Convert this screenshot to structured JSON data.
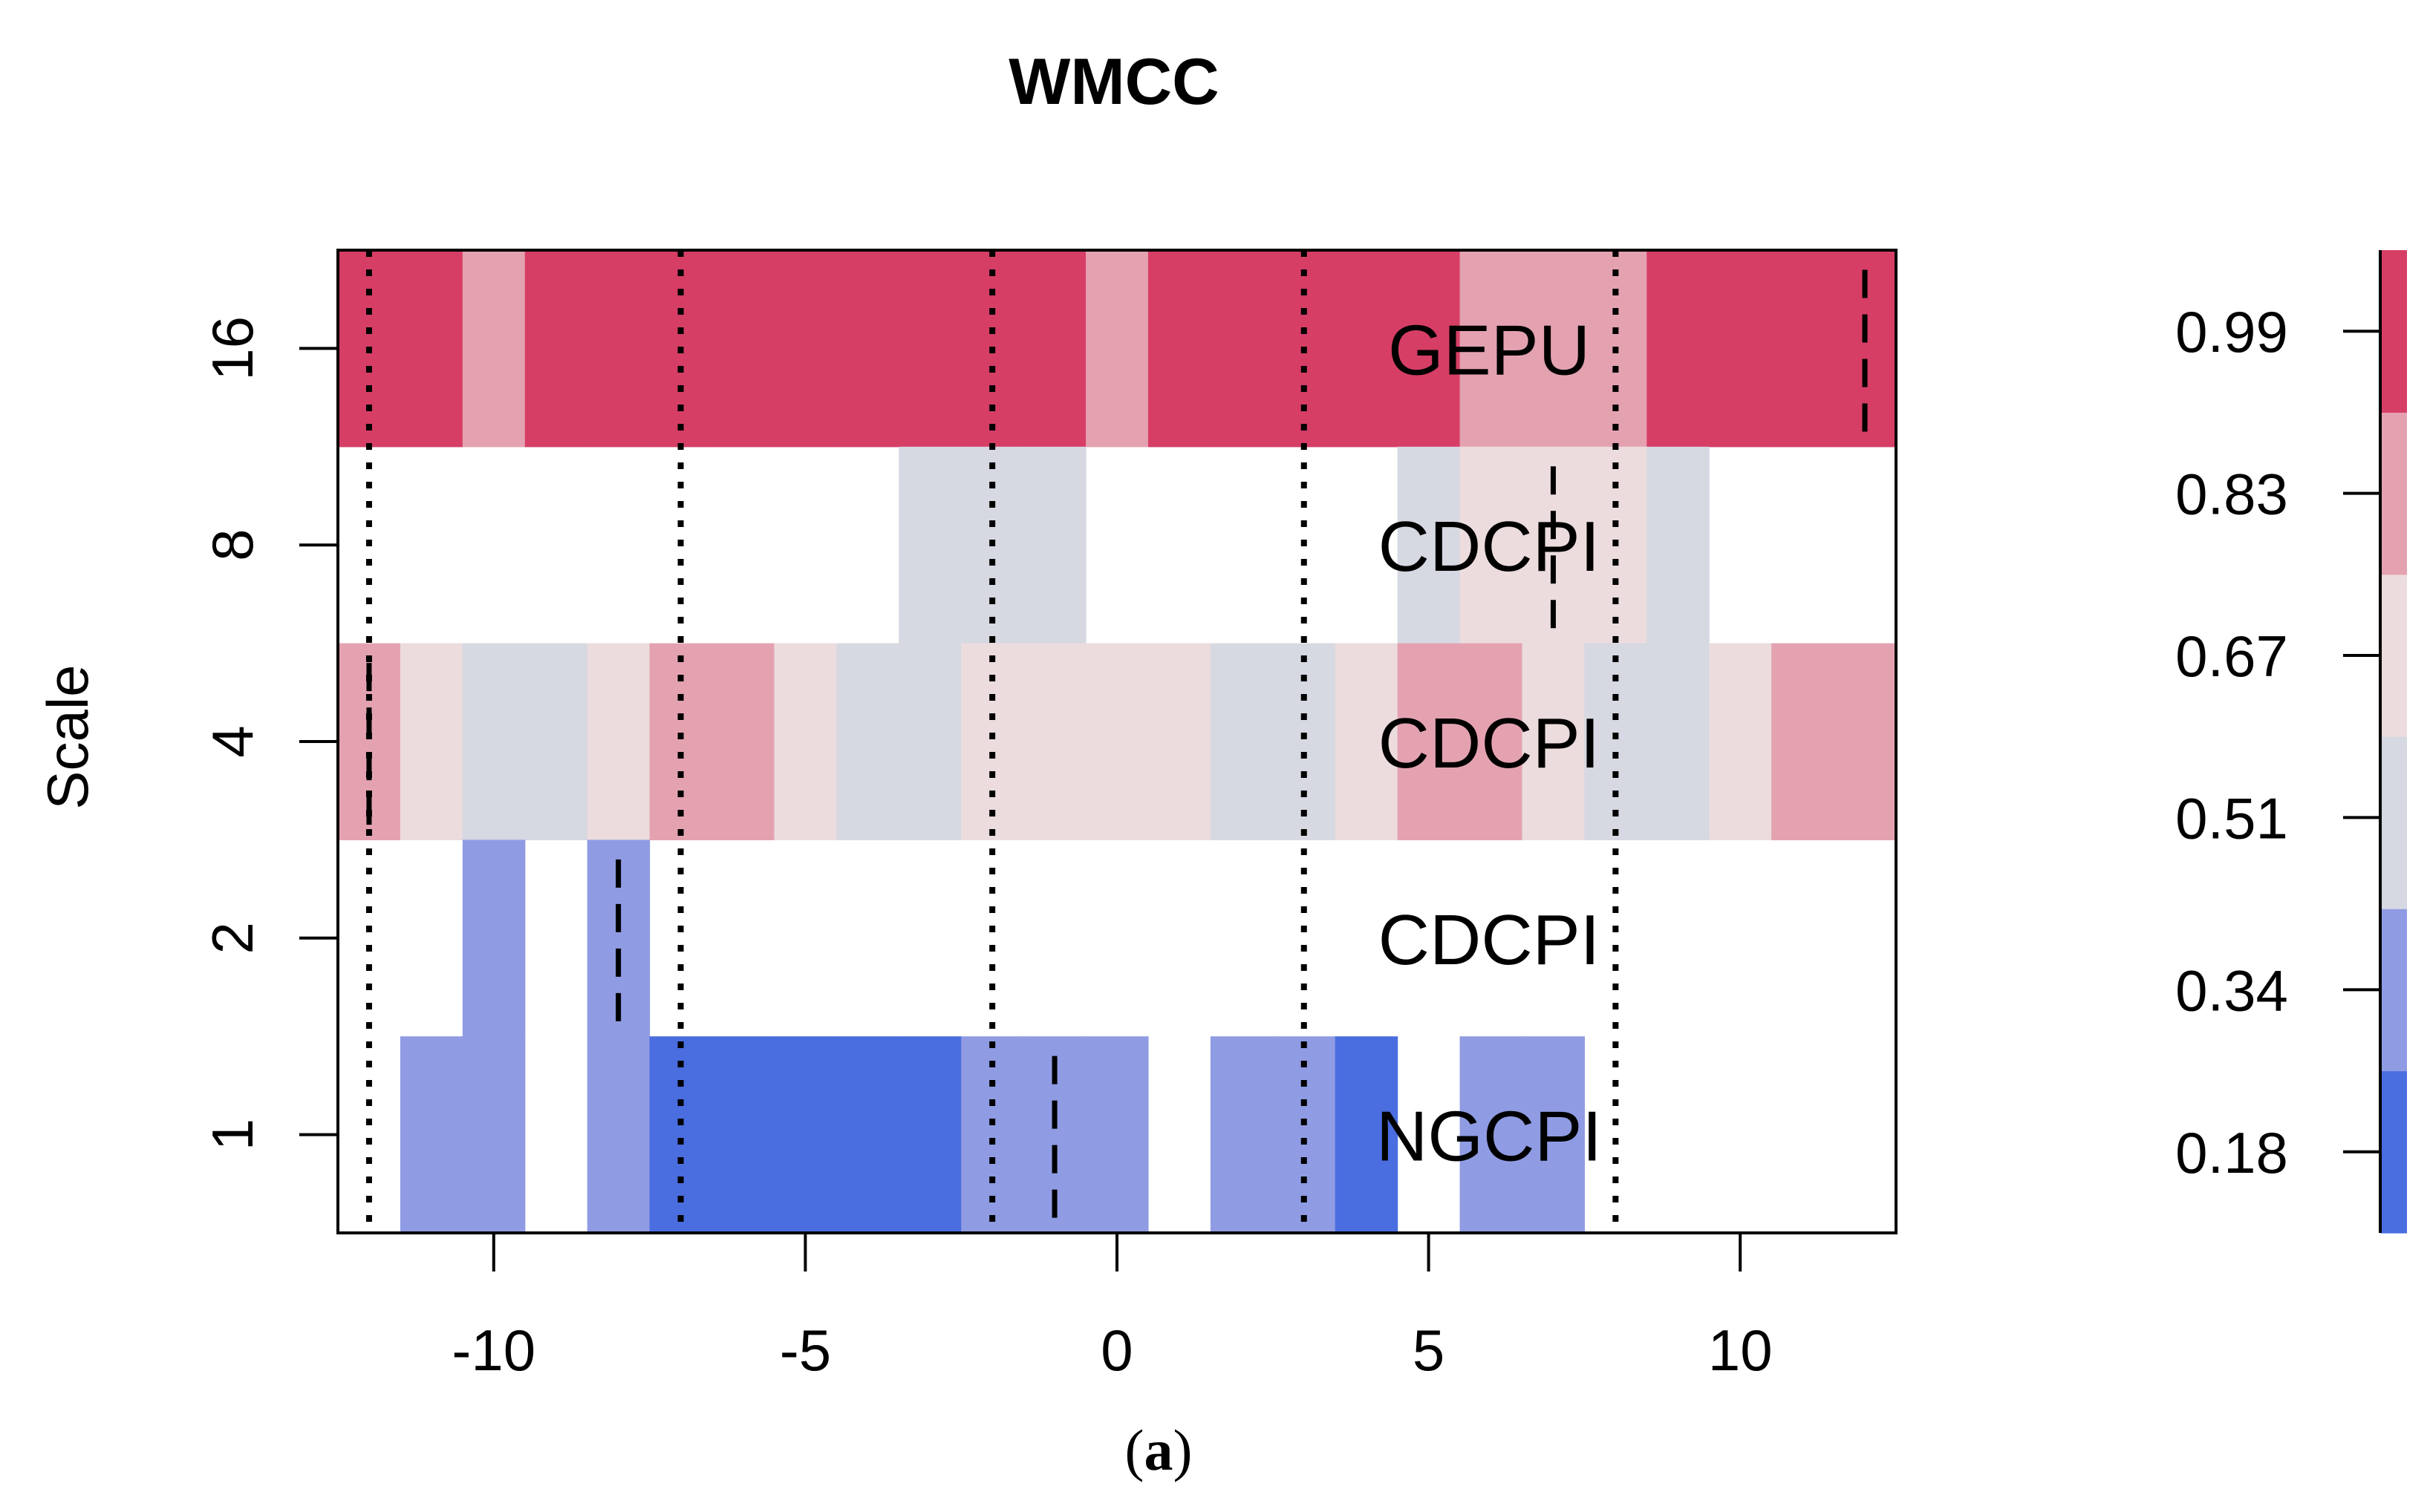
{
  "chart_data": {
    "type": "heatmap",
    "title": "WMCC",
    "xlabel": "",
    "ylabel": "Scale",
    "xlim": [
      -12.5,
      12.5
    ],
    "xticks": [
      "-10",
      "-5",
      "0",
      "5",
      "10"
    ],
    "xtick_values": [
      -10,
      -5,
      0,
      5,
      10
    ],
    "rows": [
      {
        "scale": "16",
        "label": "GEPU",
        "cells": [
          {
            "lag": -12,
            "value": 0.93
          },
          {
            "lag": -11,
            "value": 0.91
          },
          {
            "lag": -10,
            "value": 0.9
          },
          {
            "lag": -9,
            "value": 0.91
          },
          {
            "lag": -8,
            "value": 0.93
          },
          {
            "lag": -7,
            "value": 0.94
          },
          {
            "lag": -6,
            "value": 0.95
          },
          {
            "lag": -5,
            "value": 0.96
          },
          {
            "lag": -4,
            "value": 0.95
          },
          {
            "lag": -3,
            "value": 0.93
          },
          {
            "lag": -2,
            "value": 0.92
          },
          {
            "lag": -1,
            "value": 0.91
          },
          {
            "lag": 0,
            "value": 0.9
          },
          {
            "lag": 1,
            "value": 0.91
          },
          {
            "lag": 2,
            "value": 0.93
          },
          {
            "lag": 3,
            "value": 0.94
          },
          {
            "lag": 4,
            "value": 0.93
          },
          {
            "lag": 5,
            "value": 0.91
          },
          {
            "lag": 6,
            "value": 0.89
          },
          {
            "lag": 7,
            "value": 0.88
          },
          {
            "lag": 8,
            "value": 0.89
          },
          {
            "lag": 9,
            "value": 0.92
          },
          {
            "lag": 10,
            "value": 0.96
          },
          {
            "lag": 11,
            "value": 0.98
          },
          {
            "lag": 12,
            "value": 0.99
          }
        ],
        "dashed_marker": 12
      },
      {
        "scale": "8",
        "label": "CDCPI",
        "cells": [
          {
            "lag": -3,
            "value": 0.56
          },
          {
            "lag": -2,
            "value": 0.56
          },
          {
            "lag": -1,
            "value": 0.56
          },
          {
            "lag": 5,
            "value": 0.56
          },
          {
            "lag": 6,
            "value": 0.7
          },
          {
            "lag": 7,
            "value": 0.72
          },
          {
            "lag": 8,
            "value": 0.7
          },
          {
            "lag": 9,
            "value": 0.56
          }
        ],
        "dashed_marker": 7
      },
      {
        "scale": "4",
        "label": "CDCPI",
        "cells": [
          {
            "lag": -12,
            "value": 0.8
          },
          {
            "lag": -11,
            "value": 0.72
          },
          {
            "lag": -10,
            "value": 0.57
          },
          {
            "lag": -9,
            "value": 0.5
          },
          {
            "lag": -8,
            "value": 0.66
          },
          {
            "lag": -7,
            "value": 0.78
          },
          {
            "lag": -6,
            "value": 0.78
          },
          {
            "lag": -5,
            "value": 0.64
          },
          {
            "lag": -4,
            "value": 0.45
          },
          {
            "lag": -3,
            "value": 0.45
          },
          {
            "lag": -2,
            "value": 0.64
          },
          {
            "lag": -1,
            "value": 0.74
          },
          {
            "lag": 0,
            "value": 0.74
          },
          {
            "lag": 1,
            "value": 0.64
          },
          {
            "lag": 2,
            "value": 0.5
          },
          {
            "lag": 3,
            "value": 0.43
          },
          {
            "lag": 4,
            "value": 0.6
          },
          {
            "lag": 5,
            "value": 0.75
          },
          {
            "lag": 6,
            "value": 0.79
          },
          {
            "lag": 7,
            "value": 0.66
          },
          {
            "lag": 8,
            "value": 0.55
          },
          {
            "lag": 9,
            "value": 0.55
          },
          {
            "lag": 10,
            "value": 0.66
          },
          {
            "lag": 11,
            "value": 0.78
          },
          {
            "lag": 12,
            "value": 0.76
          }
        ],
        "dashed_marker": -12
      },
      {
        "scale": "2",
        "label": "CDCPI",
        "cells": [
          {
            "lag": -10,
            "value": 0.3
          },
          {
            "lag": -8,
            "value": 0.32
          }
        ],
        "dashed_marker": -8
      },
      {
        "scale": "1",
        "label": "NGCPI",
        "cells": [
          {
            "lag": -11,
            "value": 0.26
          },
          {
            "lag": -10,
            "value": 0.36
          },
          {
            "lag": -8,
            "value": 0.32
          },
          {
            "lag": -7,
            "value": 0.24
          },
          {
            "lag": -6,
            "value": 0.24
          },
          {
            "lag": -5,
            "value": 0.22
          },
          {
            "lag": -4,
            "value": 0.16
          },
          {
            "lag": -3,
            "value": 0.22
          },
          {
            "lag": -2,
            "value": 0.3
          },
          {
            "lag": -1,
            "value": 0.4
          },
          {
            "lag": 0,
            "value": 0.3
          },
          {
            "lag": 2,
            "value": 0.3
          },
          {
            "lag": 3,
            "value": 0.34
          },
          {
            "lag": 4,
            "value": 0.16
          },
          {
            "lag": 6,
            "value": 0.34
          },
          {
            "lag": 7,
            "value": 0.32
          }
        ],
        "dashed_marker": -1
      }
    ],
    "dotted_vlines": [
      -12,
      -7,
      -2,
      3,
      8
    ],
    "colorbar": {
      "ticks": [
        "0.99",
        "0.83",
        "0.67",
        "0.51",
        "0.34",
        "0.18"
      ],
      "tick_values": [
        0.99,
        0.83,
        0.67,
        0.51,
        0.34,
        0.18
      ],
      "range": [
        0.1,
        1.07
      ],
      "bands": [
        {
          "from": 0.1,
          "to": 0.26,
          "color": "#4a6ddf"
        },
        {
          "from": 0.26,
          "to": 0.42,
          "color": "#8f9ce3"
        },
        {
          "from": 0.42,
          "to": 0.59,
          "color": "#d6d8e2"
        },
        {
          "from": 0.59,
          "to": 0.75,
          "color": "#ecdcdd"
        },
        {
          "from": 0.75,
          "to": 0.91,
          "color": "#e4a2b1"
        },
        {
          "from": 0.91,
          "to": 1.07,
          "color": "#d63e66"
        }
      ]
    }
  },
  "caption": {
    "open": "(",
    "letter": "a",
    "close": ")"
  }
}
